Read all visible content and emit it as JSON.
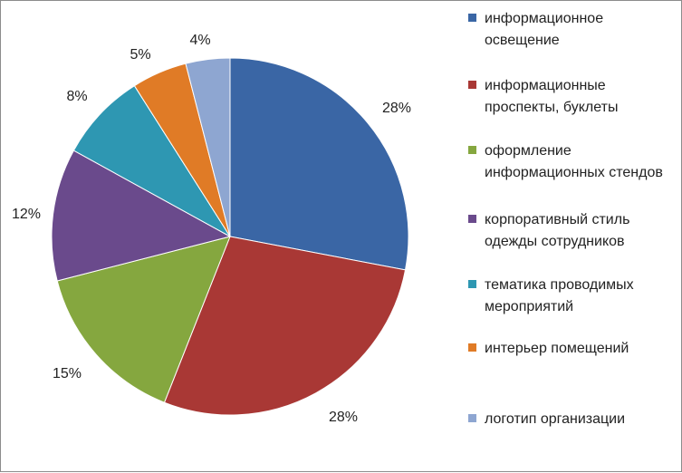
{
  "chart_data": {
    "type": "pie",
    "title": "",
    "legend_position": "right",
    "slices": [
      {
        "label": "информационное освещение",
        "value": 28,
        "value_label": "28%",
        "color": "#3A66A5"
      },
      {
        "label": "информационные проспекты, буклеты",
        "value": 28,
        "value_label": "28%",
        "color": "#A93835"
      },
      {
        "label": "оформление информационных стендов",
        "value": 15,
        "value_label": "15%",
        "color": "#85A73F"
      },
      {
        "label": "корпоративный стиль одежды сотрудников",
        "value": 12,
        "value_label": "12%",
        "color": "#6A4A8C"
      },
      {
        "label": "тематика проводимых мероприятий",
        "value": 8,
        "value_label": "8%",
        "color": "#2E97B2"
      },
      {
        "label": "интерьер помещений",
        "value": 5,
        "value_label": "5%",
        "color": "#E07B26"
      },
      {
        "label": "логотип организации",
        "value": 4,
        "value_label": "4%",
        "color": "#8EA6D1"
      }
    ]
  }
}
